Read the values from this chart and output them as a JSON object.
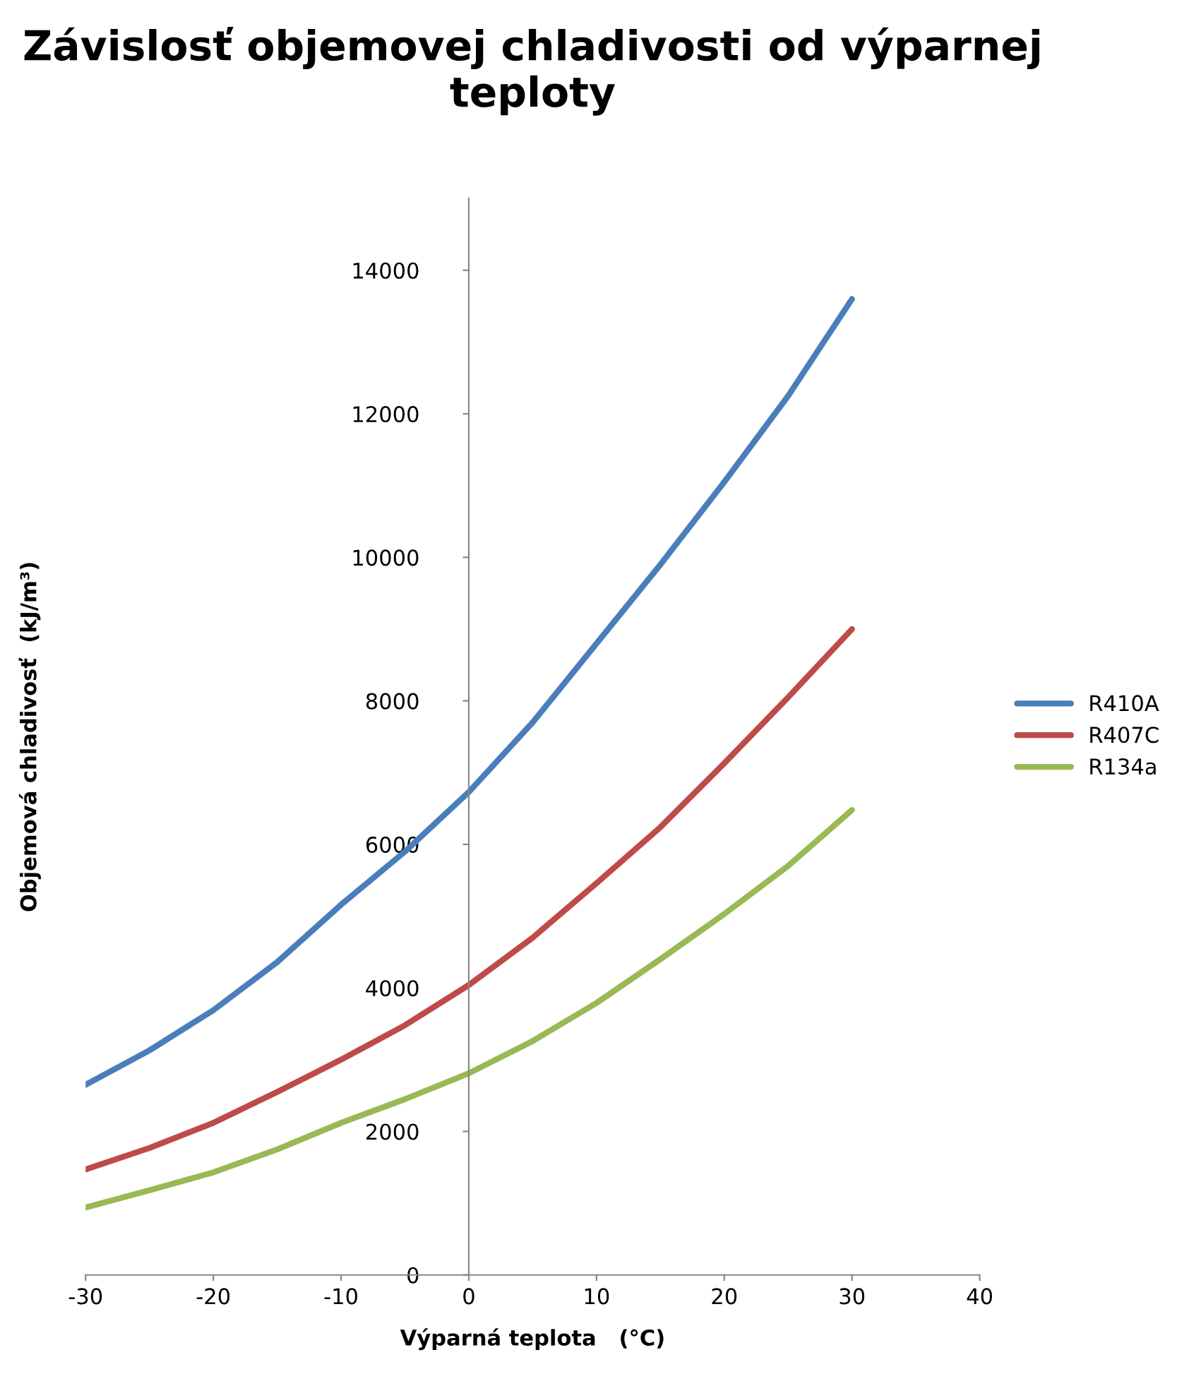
{
  "chart_data": {
    "type": "line",
    "title": "Závislosť objemovej chladivosti od výparnej teploty",
    "xlabel": "Výparná teplota   (°C)",
    "ylabel": "Objemová chladivosť  (kJ/m³)",
    "x": [
      -30,
      -25,
      -20,
      -15,
      -10,
      -5,
      0,
      5,
      10,
      15,
      20,
      25,
      30
    ],
    "series": [
      {
        "name": "R410A",
        "color": "#4a7ebb",
        "values": [
          2650,
          3130,
          3690,
          4360,
          5160,
          5900,
          6730,
          7700,
          8800,
          9900,
          11050,
          12250,
          13600
        ]
      },
      {
        "name": "R407C",
        "color": "#be4b48",
        "values": [
          1470,
          1770,
          2120,
          2550,
          3000,
          3480,
          4040,
          4700,
          5460,
          6240,
          7130,
          8050,
          9000
        ]
      },
      {
        "name": "R134a",
        "color": "#98b954",
        "values": [
          940,
          1180,
          1430,
          1750,
          2120,
          2450,
          2810,
          3260,
          3790,
          4400,
          5030,
          5700,
          6480
        ]
      }
    ],
    "xlim": [
      -30,
      40
    ],
    "xticks": [
      -30,
      -20,
      -10,
      0,
      10,
      20,
      30,
      40
    ],
    "ylim": [
      0,
      15000
    ],
    "yticks": [
      0,
      2000,
      4000,
      6000,
      8000,
      10000,
      12000,
      14000
    ],
    "grid": false,
    "legend": "right",
    "marker": "none",
    "line_style": "solid"
  }
}
